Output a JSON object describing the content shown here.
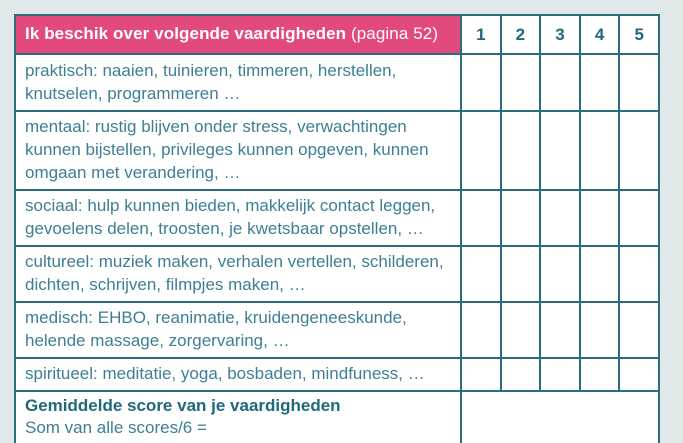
{
  "colors": {
    "page-bg": "#e1e8e8",
    "pink": "#e24a7e",
    "border-teal": "#2b6d7e",
    "text-teal": "#3d7f93",
    "dark-teal": "#20687b",
    "cell-bg": "#ffffff",
    "white": "#ffffff"
  },
  "header": {
    "title": "Ik beschik over volgende vaardigheden",
    "page_ref": "(pagina 52)",
    "score_columns": [
      "1",
      "2",
      "3",
      "4",
      "5"
    ]
  },
  "rows": [
    {
      "label": "praktisch: naaien, tuinieren, timmeren, herstellen, knutselen, programmeren …"
    },
    {
      "label": "mentaal: rustig blijven onder stress, verwachtingen kunnen bijstellen, privileges kunnen opgeven, kunnen omgaan met verandering, …"
    },
    {
      "label": "sociaal: hulp kunnen bieden, makkelijk contact leggen, gevoelens delen, troosten, je kwetsbaar opstellen, …"
    },
    {
      "label": "cultureel: muziek maken, verhalen vertellen, schilderen, dichten, schrijven, filmpjes maken, …"
    },
    {
      "label": "medisch: EHBO, reanimatie, kruidengeneeskunde, helende massage, zorgervaring, …"
    },
    {
      "label": "spiritueel: meditatie, yoga, bosbaden, mindfuness, …"
    }
  ],
  "footer": {
    "title": "Gemiddelde score van je vaardigheden",
    "subtitle": "Som van alle scores/6 ="
  }
}
